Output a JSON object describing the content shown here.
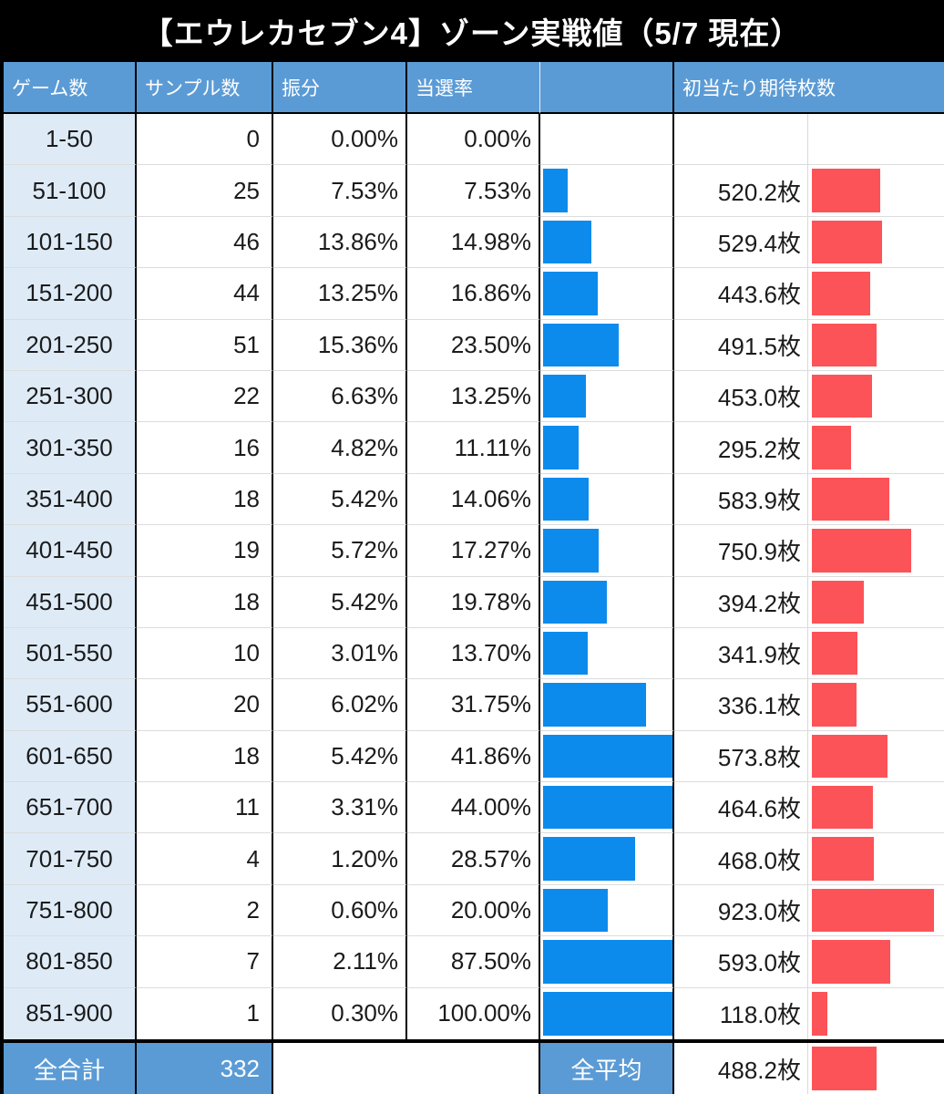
{
  "title": "【エウレカセブン4】ゾーン実戦値（5/7 現在）",
  "header": {
    "games": "ゲーム数",
    "samples": "サンプル数",
    "distribution": "振分",
    "win_rate": "当選率",
    "win_rate_bar": "",
    "expected_payout": "初当たり期待枚数"
  },
  "colors": {
    "title_bg": "#000000",
    "header_bg": "#5b9bd5",
    "row_label_bg": "#deebf7",
    "win_rate_bar": "#0d8bec",
    "payout_bar": "#fc5358",
    "grid_line": "#dcdcdc",
    "border": "#000000"
  },
  "chart_data": {
    "type": "table",
    "title": "【エウレカセブン4】ゾーン実戦値（5/7 現在）",
    "columns": [
      "ゲーム数",
      "サンプル数",
      "振分",
      "当選率",
      "初当たり期待枚数"
    ],
    "win_rate_bar_axis": {
      "min": 0,
      "max_pct": 40,
      "note": "blue data bar, capped at full width above 40%"
    },
    "payout_bar_axis": {
      "min": 0,
      "max": 1000,
      "note": "red data bar, 枚 scale"
    },
    "rows": [
      {
        "games": "1-50",
        "samples": "0",
        "distribution": "0.00%",
        "win_rate": "0.00%",
        "win_rate_value": 0,
        "payout": "",
        "payout_value": null
      },
      {
        "games": "51-100",
        "samples": "25",
        "distribution": "7.53%",
        "win_rate": "7.53%",
        "win_rate_value": 7.53,
        "payout": "520.2枚",
        "payout_value": 520.2
      },
      {
        "games": "101-150",
        "samples": "46",
        "distribution": "13.86%",
        "win_rate": "14.98%",
        "win_rate_value": 14.98,
        "payout": "529.4枚",
        "payout_value": 529.4
      },
      {
        "games": "151-200",
        "samples": "44",
        "distribution": "13.25%",
        "win_rate": "16.86%",
        "win_rate_value": 16.86,
        "payout": "443.6枚",
        "payout_value": 443.6
      },
      {
        "games": "201-250",
        "samples": "51",
        "distribution": "15.36%",
        "win_rate": "23.50%",
        "win_rate_value": 23.5,
        "payout": "491.5枚",
        "payout_value": 491.5
      },
      {
        "games": "251-300",
        "samples": "22",
        "distribution": "6.63%",
        "win_rate": "13.25%",
        "win_rate_value": 13.25,
        "payout": "453.0枚",
        "payout_value": 453.0
      },
      {
        "games": "301-350",
        "samples": "16",
        "distribution": "4.82%",
        "win_rate": "11.11%",
        "win_rate_value": 11.11,
        "payout": "295.2枚",
        "payout_value": 295.2
      },
      {
        "games": "351-400",
        "samples": "18",
        "distribution": "5.42%",
        "win_rate": "14.06%",
        "win_rate_value": 14.06,
        "payout": "583.9枚",
        "payout_value": 583.9
      },
      {
        "games": "401-450",
        "samples": "19",
        "distribution": "5.72%",
        "win_rate": "17.27%",
        "win_rate_value": 17.27,
        "payout": "750.9枚",
        "payout_value": 750.9
      },
      {
        "games": "451-500",
        "samples": "18",
        "distribution": "5.42%",
        "win_rate": "19.78%",
        "win_rate_value": 19.78,
        "payout": "394.2枚",
        "payout_value": 394.2
      },
      {
        "games": "501-550",
        "samples": "10",
        "distribution": "3.01%",
        "win_rate": "13.70%",
        "win_rate_value": 13.7,
        "payout": "341.9枚",
        "payout_value": 341.9
      },
      {
        "games": "551-600",
        "samples": "20",
        "distribution": "6.02%",
        "win_rate": "31.75%",
        "win_rate_value": 31.75,
        "payout": "336.1枚",
        "payout_value": 336.1
      },
      {
        "games": "601-650",
        "samples": "18",
        "distribution": "5.42%",
        "win_rate": "41.86%",
        "win_rate_value": 41.86,
        "payout": "573.8枚",
        "payout_value": 573.8
      },
      {
        "games": "651-700",
        "samples": "11",
        "distribution": "3.31%",
        "win_rate": "44.00%",
        "win_rate_value": 44.0,
        "payout": "464.6枚",
        "payout_value": 464.6
      },
      {
        "games": "701-750",
        "samples": "4",
        "distribution": "1.20%",
        "win_rate": "28.57%",
        "win_rate_value": 28.57,
        "payout": "468.0枚",
        "payout_value": 468.0
      },
      {
        "games": "751-800",
        "samples": "2",
        "distribution": "0.60%",
        "win_rate": "20.00%",
        "win_rate_value": 20.0,
        "payout": "923.0枚",
        "payout_value": 923.0
      },
      {
        "games": "801-850",
        "samples": "7",
        "distribution": "2.11%",
        "win_rate": "87.50%",
        "win_rate_value": 87.5,
        "payout": "593.0枚",
        "payout_value": 593.0
      },
      {
        "games": "851-900",
        "samples": "1",
        "distribution": "0.30%",
        "win_rate": "100.00%",
        "win_rate_value": 100.0,
        "payout": "118.0枚",
        "payout_value": 118.0
      }
    ],
    "footer": {
      "total_label": "全合計",
      "total_samples": "332",
      "avg_label": "全平均",
      "avg_payout": "488.2枚",
      "avg_payout_value": 488.2
    }
  }
}
